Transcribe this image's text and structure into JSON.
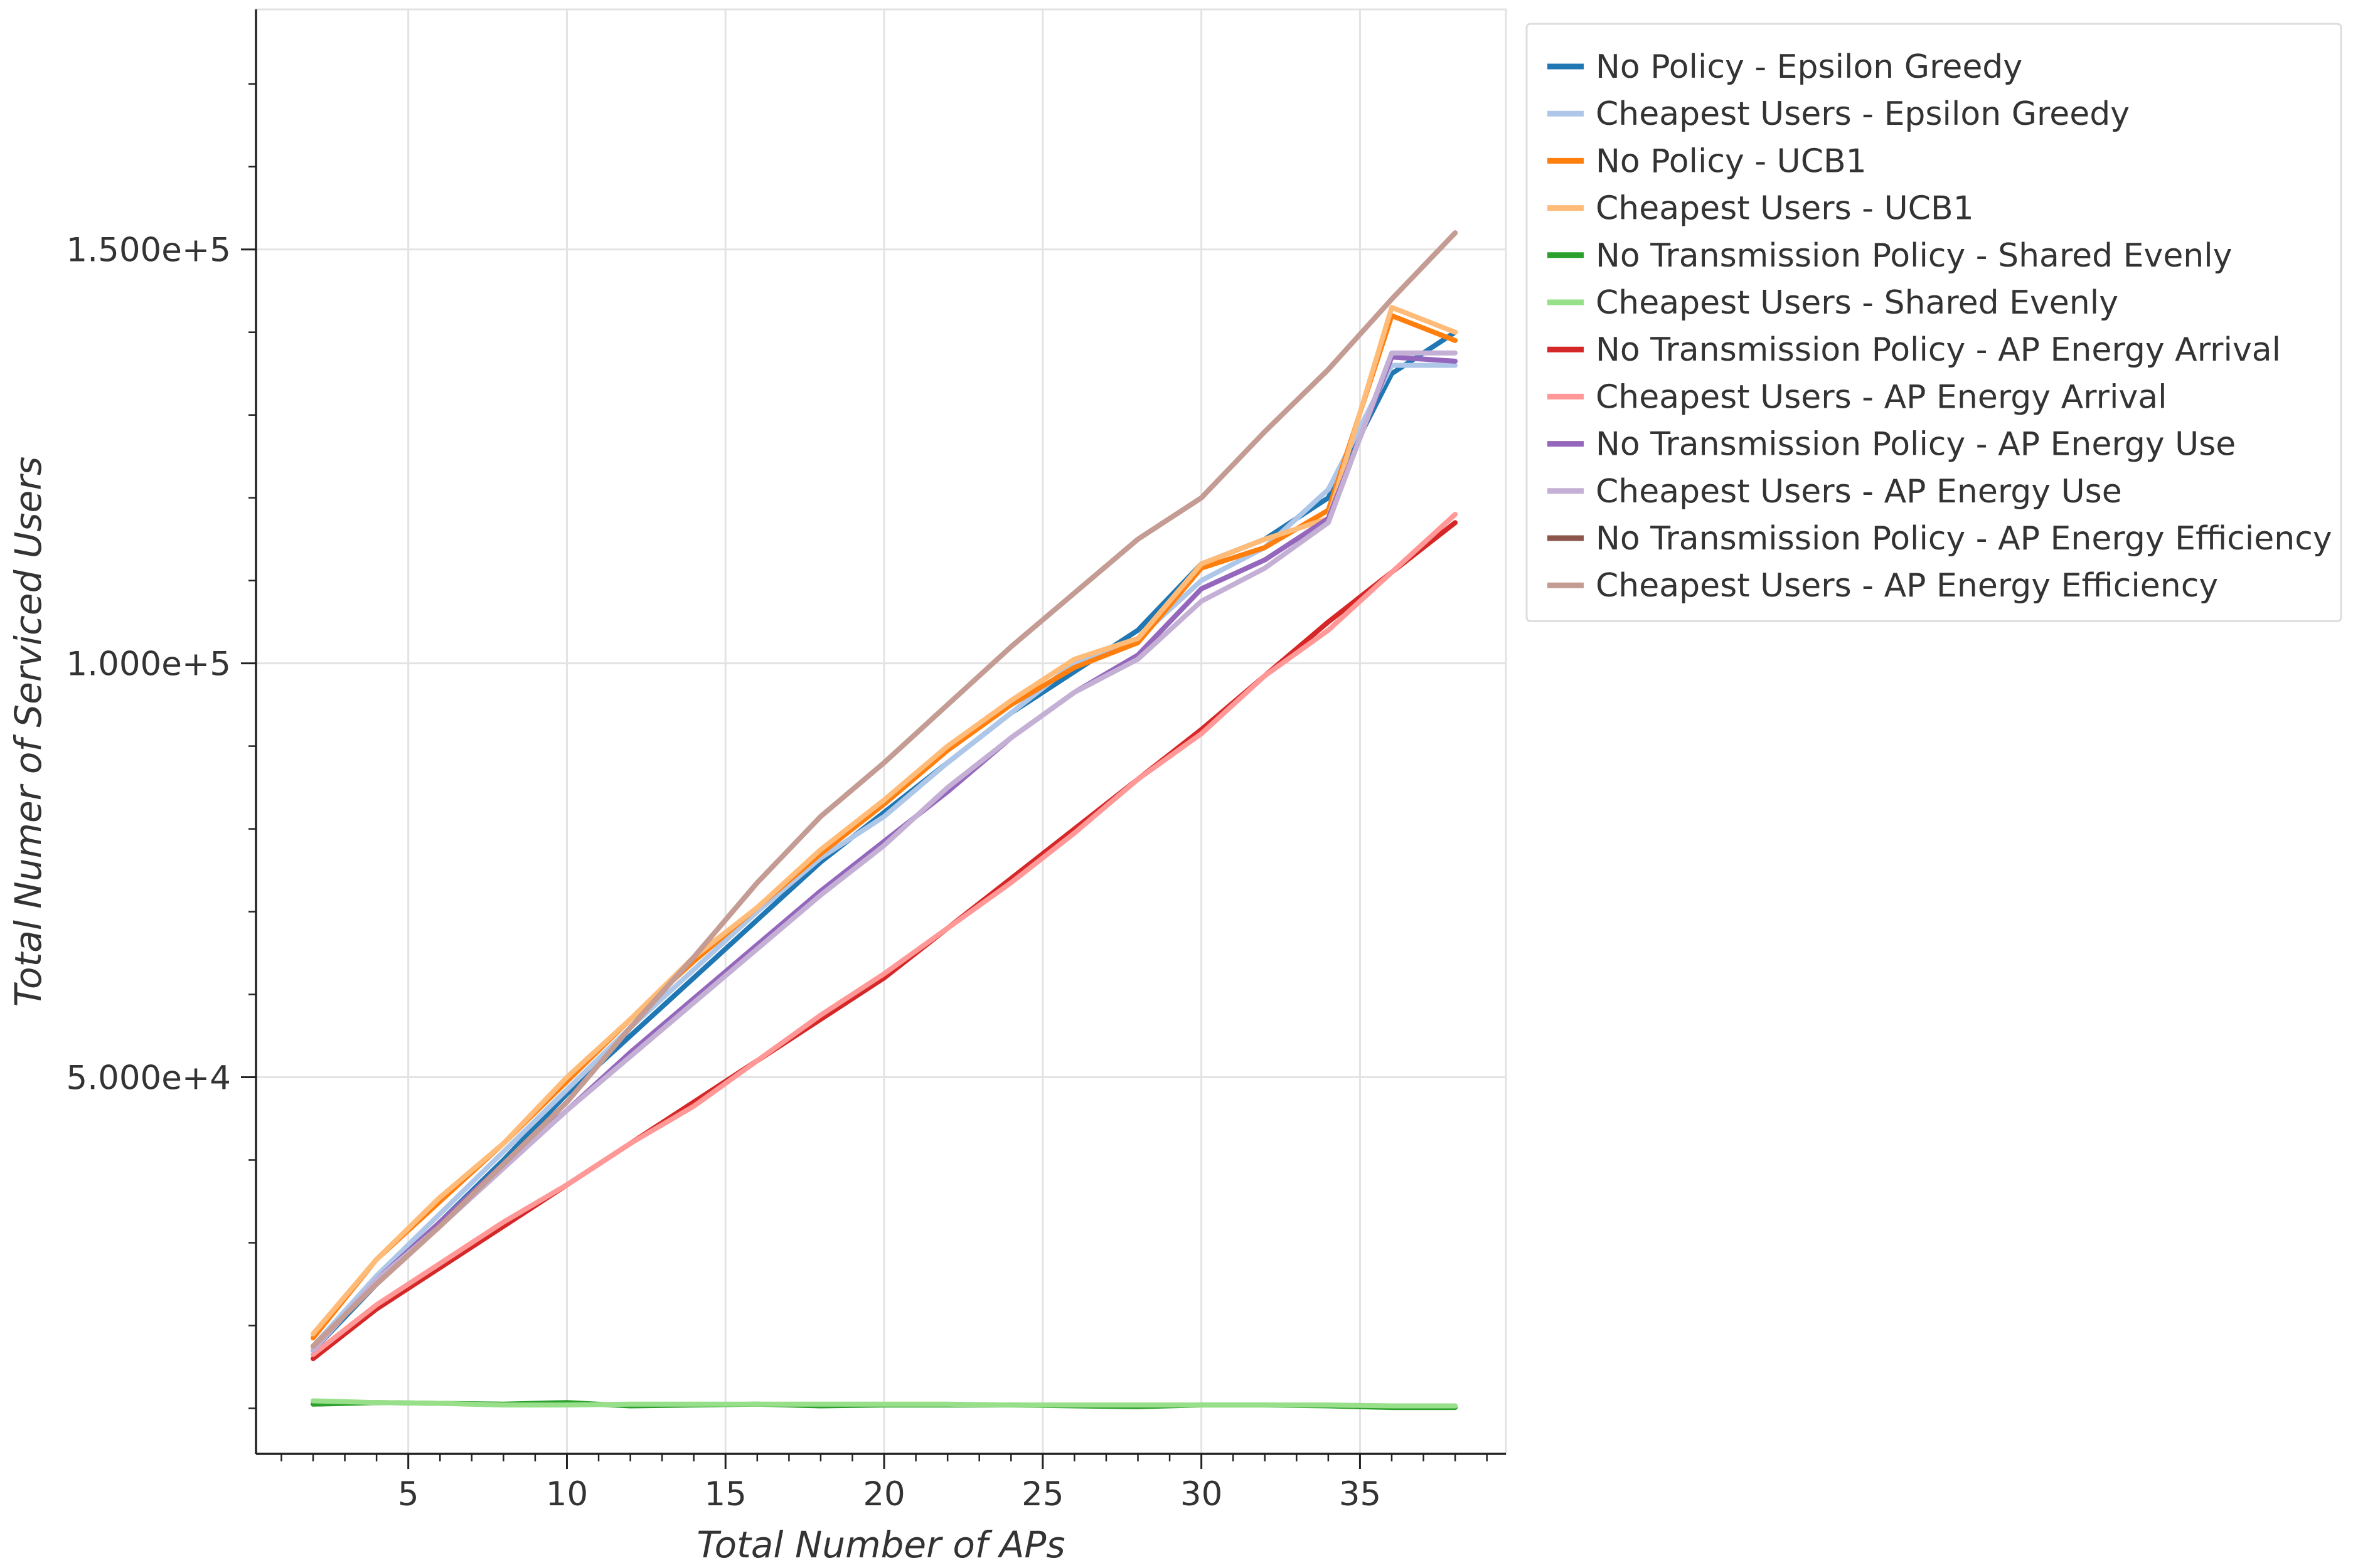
{
  "chart_data": {
    "type": "line",
    "title": "",
    "xlabel": "Total Number of APs",
    "ylabel": "Total Numer of Serviced Users",
    "xlim": [
      0.2,
      39.6
    ],
    "ylim": [
      4500,
      179000
    ],
    "x_ticks": [
      5,
      10,
      15,
      20,
      25,
      30,
      35
    ],
    "y_ticks": [
      50000,
      100000,
      150000
    ],
    "x_tick_labels": [
      "5",
      "10",
      "15",
      "20",
      "25",
      "30",
      "35"
    ],
    "y_tick_labels": [
      "5.000e+4",
      "1.000e+5",
      "1.500e+5"
    ],
    "grid": true,
    "legend_position": "outside-right-top",
    "x": [
      2,
      4,
      6,
      8,
      10,
      12,
      14,
      16,
      18,
      20,
      22,
      24,
      26,
      28,
      30,
      32,
      34,
      36,
      38
    ],
    "series": [
      {
        "name": "No Policy - Epsilon Greedy",
        "color": "#1f77b4",
        "values": [
          17000,
          25000,
          32500,
          40000,
          48000,
          55000,
          62000,
          69000,
          76000,
          82000,
          88000,
          94000,
          99000,
          104000,
          112000,
          115000,
          120000,
          135000,
          140000
        ]
      },
      {
        "name": "Cheapest Users - Epsilon Greedy",
        "color": "#aec7e8",
        "values": [
          17500,
          26000,
          33500,
          41000,
          48500,
          56000,
          63000,
          70000,
          76500,
          81500,
          88000,
          94000,
          100000,
          103000,
          110000,
          114000,
          121000,
          136000,
          136000
        ]
      },
      {
        "name": "No Policy - UCB1",
        "color": "#ff7f0e",
        "values": [
          18500,
          28000,
          35000,
          42000,
          49500,
          57000,
          64000,
          70500,
          77000,
          83000,
          89500,
          95000,
          99500,
          102500,
          111500,
          114000,
          118500,
          142000,
          139000
        ]
      },
      {
        "name": "Cheapest Users - UCB1",
        "color": "#ffbb78",
        "values": [
          19000,
          28000,
          35500,
          42000,
          50000,
          57000,
          64500,
          70500,
          77500,
          83500,
          90000,
          95500,
          100500,
          103000,
          112000,
          115000,
          117500,
          143000,
          140000
        ]
      },
      {
        "name": "No Transmission Policy - Shared Evenly",
        "color": "#2ca02c",
        "values": [
          10500,
          10700,
          10600,
          10500,
          10700,
          10300,
          10400,
          10500,
          10300,
          10400,
          10400,
          10400,
          10300,
          10200,
          10400,
          10400,
          10300,
          10100,
          10100
        ]
      },
      {
        "name": "Cheapest Users - Shared Evenly",
        "color": "#98df8a",
        "values": [
          10900,
          10700,
          10600,
          10400,
          10400,
          10500,
          10500,
          10500,
          10500,
          10500,
          10500,
          10400,
          10400,
          10400,
          10400,
          10400,
          10400,
          10300,
          10300
        ]
      },
      {
        "name": "No Transmission Policy - AP Energy Arrival",
        "color": "#d62728",
        "values": [
          16000,
          22000,
          27000,
          32000,
          37000,
          42000,
          47000,
          52000,
          57000,
          62000,
          68000,
          74000,
          80000,
          86000,
          92000,
          98500,
          105000,
          111000,
          117000
        ]
      },
      {
        "name": "Cheapest Users - AP Energy Arrival",
        "color": "#ff9896",
        "values": [
          16500,
          22500,
          27500,
          32500,
          37000,
          42000,
          46500,
          52000,
          57500,
          62500,
          68000,
          73500,
          79500,
          86000,
          91500,
          98500,
          104000,
          111000,
          118000
        ]
      },
      {
        "name": "No Transmission Policy - AP Energy Use",
        "color": "#9467bd",
        "values": [
          17000,
          25500,
          32500,
          39500,
          46000,
          53000,
          59500,
          66000,
          72500,
          78500,
          84500,
          91000,
          96500,
          101000,
          109000,
          112500,
          117500,
          137000,
          136500
        ]
      },
      {
        "name": "Cheapest Users - AP Energy Use",
        "color": "#c5b0d5",
        "values": [
          17000,
          25500,
          32000,
          39000,
          46000,
          52500,
          59000,
          65500,
          72000,
          78000,
          85000,
          91000,
          96500,
          100500,
          107500,
          111500,
          117000,
          137500,
          137500
        ]
      },
      {
        "name": "No Transmission Policy - AP Energy Efficiency",
        "color": "#8c564b",
        "values": [
          17500,
          25000,
          32000,
          39500,
          47000,
          56000,
          64500,
          73500,
          81500,
          88000,
          95000,
          102000,
          108500,
          115000,
          120000,
          128000,
          135500,
          144000,
          152000
        ]
      },
      {
        "name": "Cheapest Users - AP Energy Efficiency",
        "color": "#c49c94",
        "values": [
          17500,
          25000,
          32000,
          39500,
          47000,
          56000,
          64500,
          73500,
          81500,
          88000,
          95000,
          102000,
          108500,
          115000,
          120000,
          128000,
          135500,
          144000,
          152000
        ]
      }
    ]
  }
}
